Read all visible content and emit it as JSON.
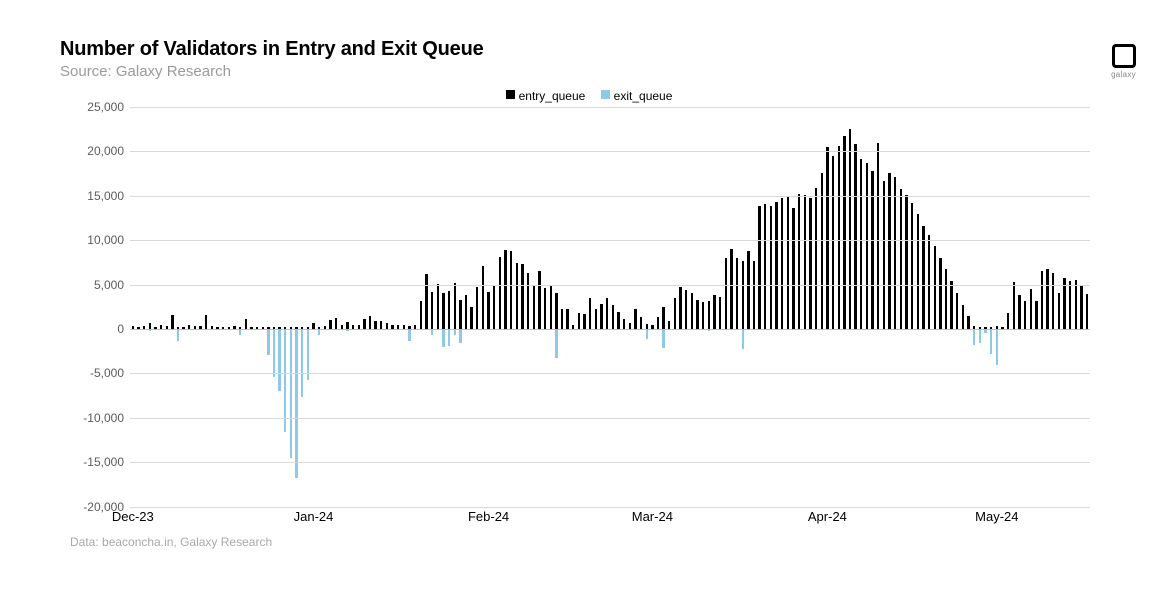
{
  "header": {
    "title": "Number of Validators in Entry and Exit Queue",
    "subtitle": "Source: Galaxy Research"
  },
  "footnote": "Data: beaconcha.in, Galaxy Research",
  "logo": {
    "text": "galaxy"
  },
  "legend": {
    "entry_label": "entry_queue",
    "exit_label": "exit_queue"
  },
  "chart": {
    "type": "bar",
    "ylim": [
      -20000,
      25000
    ],
    "ytick_step": 5000,
    "yticks": [
      -20000,
      -15000,
      -10000,
      -5000,
      0,
      5000,
      10000,
      15000,
      20000,
      25000
    ],
    "ytick_labels": [
      "-20,000",
      "-15,000",
      "-10,000",
      "-5,000",
      "0",
      "5,000",
      "10,000",
      "15,000",
      "20,000",
      "25,000"
    ],
    "grid_color": "#d9d9d9",
    "zero_line_color": "#bdbdbd",
    "background_color": "#ffffff",
    "bar_width_ratio": 0.42,
    "entry_color": "#000000",
    "exit_color": "#8fc9e8",
    "label_fontsize": 12,
    "title_fontsize": 20,
    "x_categories": [
      "Dec-23",
      "Jan-24",
      "Feb-24",
      "Mar-24",
      "Apr-24",
      "May-24"
    ],
    "x_category_positions": [
      0,
      32,
      63,
      92,
      123,
      153
    ],
    "n_points": 170,
    "entry_queue": [
      300,
      200,
      300,
      700,
      200,
      500,
      300,
      1600,
      200,
      200,
      400,
      300,
      300,
      1600,
      300,
      200,
      200,
      200,
      300,
      200,
      1100,
      200,
      200,
      200,
      200,
      200,
      200,
      200,
      200,
      200,
      200,
      200,
      700,
      200,
      300,
      1000,
      1200,
      500,
      800,
      400,
      500,
      1100,
      1500,
      900,
      900,
      700,
      500,
      400,
      400,
      300,
      400,
      3200,
      6200,
      4200,
      5100,
      4000,
      4300,
      5200,
      3300,
      3800,
      2500,
      4700,
      7100,
      4200,
      4900,
      8100,
      8900,
      8800,
      7400,
      7300,
      6300,
      5000,
      6500,
      4600,
      4900,
      4000,
      2200,
      2200,
      500,
      1800,
      1700,
      3500,
      2300,
      2800,
      3500,
      2700,
      1900,
      1100,
      700,
      2300,
      1300,
      600,
      500,
      1400,
      2500,
      900,
      3500,
      4700,
      4400,
      4100,
      3300,
      3000,
      3100,
      3800,
      3600,
      8000,
      9000,
      8000,
      7600,
      8800,
      7700,
      13800,
      14100,
      13800,
      14300,
      14700,
      14900,
      13600,
      15200,
      15100,
      14700,
      15900,
      17500,
      20500,
      19500,
      20600,
      21700,
      22500,
      20800,
      19100,
      18700,
      17800,
      20900,
      16600,
      17600,
      17100,
      15800,
      15100,
      14200,
      12900,
      11600,
      10600,
      9300,
      8000,
      6700,
      5400,
      4100,
      2700,
      1500,
      300,
      200,
      200,
      200,
      300,
      200,
      1800,
      5300,
      3800,
      3200,
      4500,
      3100,
      6500,
      6700,
      6300,
      4000,
      5700,
      5400,
      5500,
      5000,
      3900
    ],
    "exit_queue": [
      0,
      0,
      0,
      -200,
      0,
      0,
      0,
      0,
      -1300,
      0,
      0,
      0,
      0,
      0,
      0,
      0,
      0,
      0,
      0,
      -700,
      0,
      0,
      0,
      0,
      -2900,
      -5400,
      -7000,
      -11600,
      -14500,
      -16800,
      -7700,
      -5700,
      0,
      -700,
      0,
      0,
      0,
      0,
      -200,
      0,
      0,
      0,
      0,
      0,
      0,
      0,
      0,
      0,
      0,
      -1300,
      0,
      0,
      0,
      -700,
      0,
      -2000,
      -1900,
      -700,
      -1600,
      0,
      0,
      0,
      0,
      0,
      0,
      0,
      0,
      0,
      0,
      0,
      0,
      0,
      0,
      0,
      0,
      -3300,
      0,
      0,
      0,
      0,
      0,
      0,
      0,
      0,
      0,
      0,
      0,
      0,
      0,
      0,
      0,
      -1100,
      0,
      0,
      -2100,
      0,
      0,
      0,
      0,
      0,
      0,
      0,
      -200,
      0,
      0,
      0,
      0,
      0,
      -2300,
      0,
      0,
      0,
      0,
      0,
      0,
      0,
      0,
      0,
      0,
      0,
      0,
      0,
      0,
      0,
      0,
      0,
      0,
      0,
      0,
      0,
      0,
      0,
      0,
      0,
      0,
      0,
      0,
      0,
      0,
      0,
      0,
      0,
      0,
      0,
      0,
      0,
      0,
      0,
      0,
      -1800,
      -1600,
      -500,
      -2800,
      -4000,
      0,
      0,
      0,
      0,
      0,
      0,
      0,
      0,
      0,
      0,
      0,
      0,
      0,
      0,
      0
    ]
  }
}
